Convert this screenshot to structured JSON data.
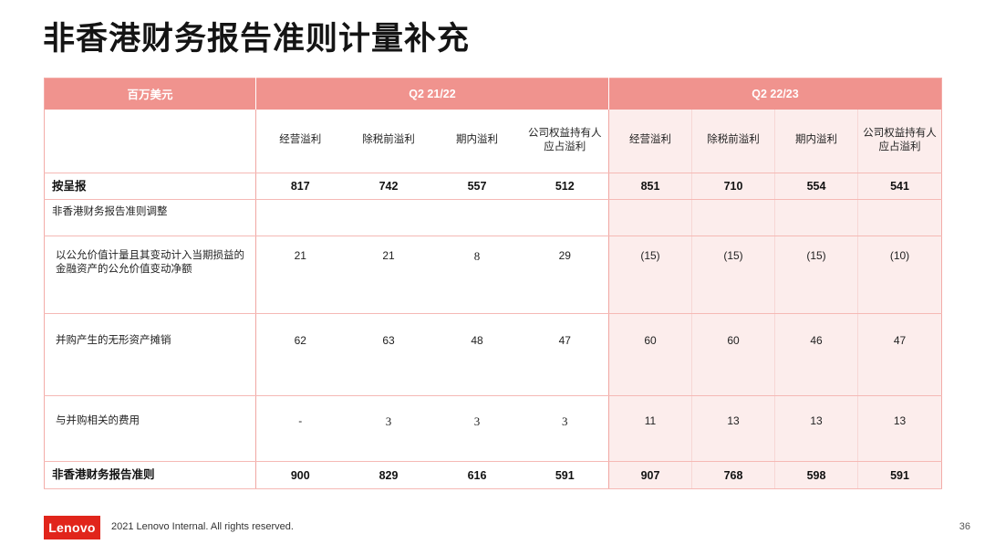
{
  "slide": {
    "title": "非香港财务报告准则计量补充",
    "footer": "2021 Lenovo Internal. All rights reserved.",
    "logo": "Lenovo",
    "page_number": "36"
  },
  "colors": {
    "header_bg": "#F0938E",
    "highlight_bg": "#FCEDEC",
    "row_border": "#F5B9B5",
    "lenovo_red": "#E1251B"
  },
  "table": {
    "unit_label": "百万美元",
    "period_headers": [
      "Q2 21/22",
      "Q2 22/23"
    ],
    "metric_headers": [
      "经营溢利",
      "除税前溢利",
      "期内溢利",
      "公司权益持有人\n应占溢利"
    ],
    "rows": [
      {
        "label": "按呈报",
        "emphasis": true,
        "sub_item": false,
        "q2_2122": [
          {
            "v": "817"
          },
          {
            "v": "742"
          },
          {
            "v": "557"
          },
          {
            "v": "512"
          }
        ],
        "q2_2223": [
          {
            "v": "851"
          },
          {
            "v": "710"
          },
          {
            "v": "554"
          },
          {
            "v": "541"
          }
        ]
      },
      {
        "label": "非香港财务报告准则调整",
        "emphasis": false,
        "sub_item": false,
        "q2_2122": [],
        "q2_2223": []
      },
      {
        "label": "以公允价值计量且其变动计入当期损益的金融资产的公允价值变动净额",
        "emphasis": false,
        "sub_item": true,
        "q2_2122": [
          {
            "v": "21"
          },
          {
            "v": "21"
          },
          {
            "v": "8",
            "serif": true
          },
          {
            "v": "29"
          }
        ],
        "q2_2223": [
          {
            "v": "(15)"
          },
          {
            "v": "(15)"
          },
          {
            "v": "(15)"
          },
          {
            "v": "(10)"
          }
        ]
      },
      {
        "label": "并购产生的无形资产摊销",
        "emphasis": false,
        "sub_item": true,
        "q2_2122": [
          {
            "v": "62"
          },
          {
            "v": "63"
          },
          {
            "v": "48"
          },
          {
            "v": "47"
          }
        ],
        "q2_2223": [
          {
            "v": "60"
          },
          {
            "v": "60"
          },
          {
            "v": "46"
          },
          {
            "v": "47"
          }
        ]
      },
      {
        "label": "与并购相关的费用",
        "emphasis": false,
        "sub_item": true,
        "q2_2122": [
          {
            "v": "-"
          },
          {
            "v": "3",
            "serif": true
          },
          {
            "v": "3",
            "serif": true
          },
          {
            "v": "3",
            "serif": true
          }
        ],
        "q2_2223": [
          {
            "v": "11"
          },
          {
            "v": "13"
          },
          {
            "v": "13"
          },
          {
            "v": "13"
          }
        ]
      },
      {
        "label": "非香港财务报告准则",
        "emphasis": true,
        "sub_item": false,
        "q2_2122": [
          {
            "v": "900"
          },
          {
            "v": "829"
          },
          {
            "v": "616"
          },
          {
            "v": "591"
          }
        ],
        "q2_2223": [
          {
            "v": "907"
          },
          {
            "v": "768"
          },
          {
            "v": "598"
          },
          {
            "v": "591"
          }
        ]
      }
    ]
  }
}
